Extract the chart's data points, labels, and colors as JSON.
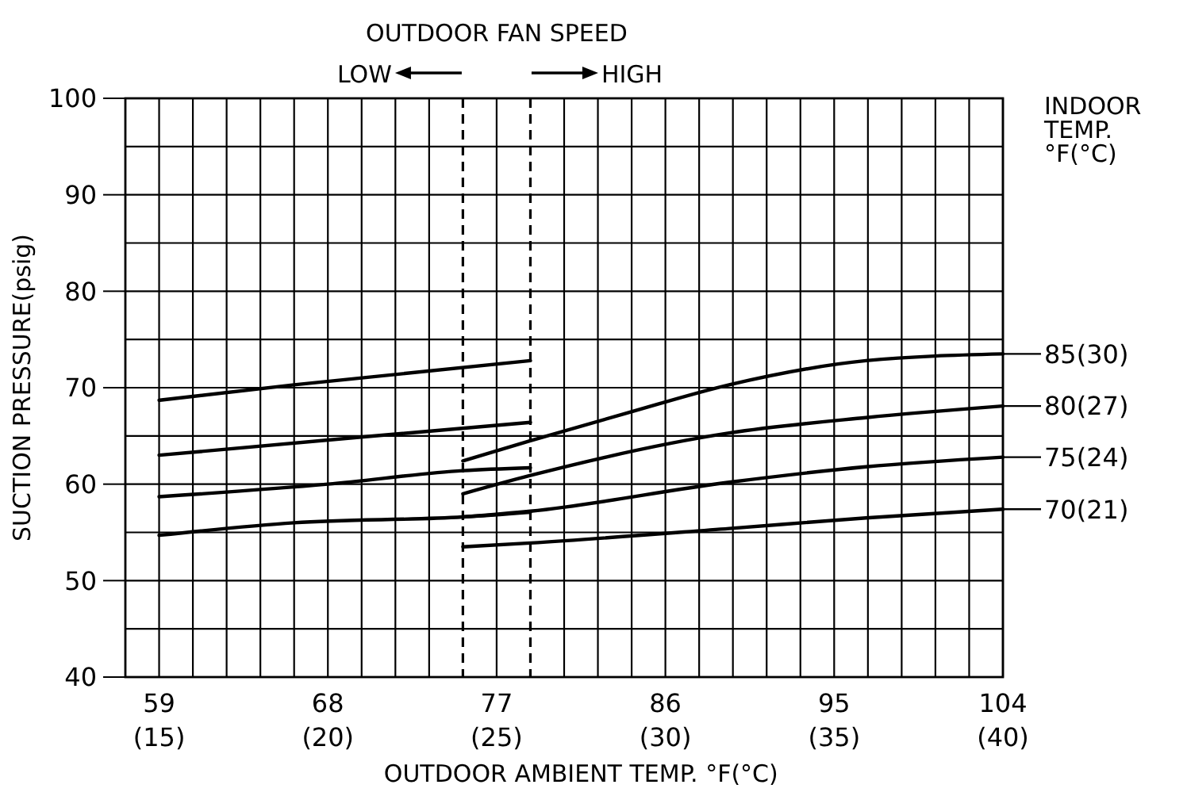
{
  "chart_data": {
    "type": "line",
    "xlabel": "OUTDOOR AMBIENT TEMP. °F(°C)",
    "ylabel": "SUCTION PRESSURE(psig)",
    "legend_title": "INDOOR\nTEMP.\n°F(°C)",
    "annotations": [
      "OUTDOOR FAN SPEED",
      "LOW",
      "HIGH"
    ],
    "xlim": [
      57.2,
      104
    ],
    "ylim": [
      40,
      100
    ],
    "xticks": [
      59,
      {
        "value": 60.8,
        "label": null
      },
      {
        "value": 62.6,
        "label": null
      },
      {
        "value": 64.4,
        "label": null
      },
      {
        "value": 66.2,
        "label": null
      },
      68,
      {
        "value": 69.8,
        "label": null
      },
      {
        "value": 71.6,
        "label": null
      },
      {
        "value": 73.4,
        "label": null
      },
      77,
      {
        "value": 80.6,
        "label": null
      },
      {
        "value": 82.4,
        "label": null
      },
      {
        "value": 84.2,
        "label": null
      },
      86,
      {
        "value": 87.8,
        "label": null
      },
      {
        "value": 89.6,
        "label": null
      },
      {
        "value": 91.4,
        "label": null
      },
      {
        "value": 93.2,
        "label": null
      },
      95,
      {
        "value": 96.8,
        "label": null
      },
      {
        "value": 98.6,
        "label": null
      },
      {
        "value": 100.4,
        "label": null
      },
      {
        "value": 102.2,
        "label": null
      },
      104
    ],
    "x2lim": [
      14,
      40
    ],
    "x2ticks": [
      {
        "value": 15,
        "label": "(15)"
      },
      {
        "value": 20,
        "label": "(20)"
      },
      {
        "value": 25,
        "label": "(25)"
      },
      {
        "value": 30,
        "label": "(30)"
      },
      {
        "value": 35,
        "label": "(35)"
      },
      {
        "value": 40,
        "label": "(40)"
      }
    ],
    "yticks": [
      40,
      {
        "value": 45,
        "label": null
      },
      50,
      {
        "value": 55,
        "label": null
      },
      60,
      {
        "value": 65,
        "label": null
      },
      70,
      {
        "value": 75,
        "label": null
      },
      80,
      {
        "value": 85,
        "label": null
      },
      90,
      {
        "value": 95,
        "label": null
      },
      100
    ],
    "grid": true,
    "legend": "right",
    "marker": "none",
    "line_style": "solid",
    "ref_lines": [
      {
        "axis": "x",
        "value": 75.2,
        "label": null,
        "line_style": "dashed"
      },
      {
        "axis": "x",
        "value": 78.8,
        "label": null,
        "line_style": "dashed"
      }
    ],
    "series": [
      {
        "color": "#000000",
        "x": [
          59,
          66.2,
          78.8
        ],
        "values": [
          68.7,
          70.3,
          72.8
        ]
      },
      {
        "color": "#000000",
        "x": [
          59,
          69.9,
          78.8
        ],
        "values": [
          63.0,
          64.9,
          66.4
        ]
      },
      {
        "color": "#000000",
        "x": [
          59,
          68,
          75.2,
          78.8
        ],
        "values": [
          58.7,
          60.0,
          61.4,
          61.7
        ]
      },
      {
        "color": "#000000",
        "x": [
          59,
          66.2,
          75.2,
          78.8
        ],
        "values": [
          54.7,
          56.0,
          56.6,
          57.1
        ]
      },
      {
        "name": "85(30)",
        "color": "#000000",
        "x": [
          75.2,
          78.8,
          84,
          89.4,
          96.7,
          104
        ],
        "values": [
          62.4,
          64.5,
          67.4,
          70.3,
          72.8,
          73.5
        ]
      },
      {
        "name": "80(27)",
        "color": "#000000",
        "x": [
          75.2,
          78.8,
          89.4,
          96.7,
          104
        ],
        "values": [
          59.0,
          60.9,
          65.3,
          66.9,
          68.1
        ]
      },
      {
        "name": "75(24)",
        "color": "#000000",
        "x": [
          75.2,
          78.8,
          89.4,
          96.7,
          104
        ],
        "values": [
          56.6,
          57.2,
          60.2,
          61.8,
          62.8
        ]
      },
      {
        "name": "70(21)",
        "color": "#000000",
        "x": [
          75.2,
          78.8,
          89.4,
          96.7,
          104
        ],
        "values": [
          53.5,
          53.9,
          55.4,
          56.5,
          57.4
        ]
      }
    ]
  }
}
